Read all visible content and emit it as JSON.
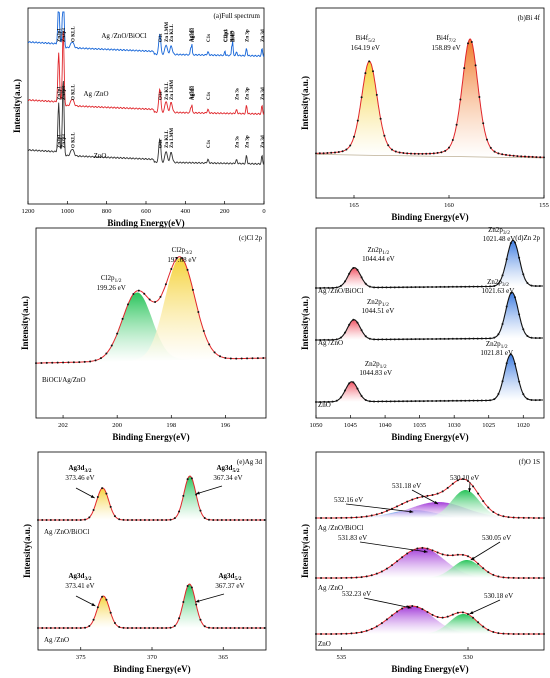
{
  "colors": {
    "blue": "#1565d8",
    "red": "#e0262b",
    "gray": "#333333",
    "yellow": "#f5d23a",
    "orange": "#f07a2a",
    "green": "#28c45a",
    "pink": "#f05060",
    "sky": "#3a7ae0",
    "purple": "#a23ad8"
  },
  "chart_data": [
    {
      "type": "line",
      "panel": "a",
      "title": "(a)Full spectrum",
      "xlabel": "Binding Energy(eV)",
      "ylabel": "Intensity(a.u.)",
      "xlim": [
        1200,
        0
      ],
      "xticks": [
        "1200",
        "1000",
        "800",
        "600",
        "400",
        "200",
        "0"
      ],
      "series": [
        {
          "name": "Ag /ZnO/BiOCl",
          "color": "blue"
        },
        {
          "name": "Ag /ZnO",
          "color": "red"
        },
        {
          "name": "ZnO",
          "color": "gray"
        }
      ],
      "annotations": [
        {
          "text": "Zn2p1",
          "x": 1044,
          "row": 0
        },
        {
          "text": "Zn2p3",
          "x": 1021,
          "row": 0
        },
        {
          "text": "O KLL",
          "x": 975,
          "row": 0
        },
        {
          "text": "O1s",
          "x": 530,
          "row": 0
        },
        {
          "text": "Zn LMM",
          "x": 498,
          "row": 0
        },
        {
          "text": "Zn KLL",
          "x": 472,
          "row": 0
        },
        {
          "text": "Ag3d3",
          "x": 373,
          "row": 0
        },
        {
          "text": "Ag3d5",
          "x": 367,
          "row": 0
        },
        {
          "text": "C1s",
          "x": 285,
          "row": 0
        },
        {
          "text": "Cl2p1",
          "x": 199,
          "row": 0
        },
        {
          "text": "Cl2p3",
          "x": 197,
          "row": 0
        },
        {
          "text": "Bi4f5",
          "x": 164,
          "row": 0
        },
        {
          "text": "Bi4f7",
          "x": 159,
          "row": 0
        },
        {
          "text": "Zn 3d",
          "x": 10,
          "row": 0
        },
        {
          "text": "Zn 3p",
          "x": 89,
          "row": 0
        },
        {
          "text": "Zn2p1",
          "x": 1044,
          "row": 1
        },
        {
          "text": "Zn2p3",
          "x": 1021,
          "row": 1
        },
        {
          "text": "O KLL",
          "x": 975,
          "row": 1
        },
        {
          "text": "O1s",
          "x": 530,
          "row": 1
        },
        {
          "text": "Zn KLL",
          "x": 498,
          "row": 1
        },
        {
          "text": "Zn LMM",
          "x": 472,
          "row": 1
        },
        {
          "text": "Ag3d3",
          "x": 373,
          "row": 1
        },
        {
          "text": "Ag3d5",
          "x": 367,
          "row": 1
        },
        {
          "text": "C1s",
          "x": 285,
          "row": 1
        },
        {
          "text": "Zn 3s",
          "x": 140,
          "row": 1
        },
        {
          "text": "Zn 3d",
          "x": 10,
          "row": 1
        },
        {
          "text": "Zn 3p",
          "x": 89,
          "row": 1
        },
        {
          "text": "Zn2p1",
          "x": 1044,
          "row": 2
        },
        {
          "text": "Zn2p3",
          "x": 1021,
          "row": 2
        },
        {
          "text": "O KLL",
          "x": 975,
          "row": 2
        },
        {
          "text": "O1s",
          "x": 530,
          "row": 2
        },
        {
          "text": "Zn KLL",
          "x": 498,
          "row": 2
        },
        {
          "text": "Zn LMM",
          "x": 472,
          "row": 2
        },
        {
          "text": "C1s",
          "x": 285,
          "row": 2
        },
        {
          "text": "Zn 3s",
          "x": 140,
          "row": 2
        },
        {
          "text": "Zn 3d",
          "x": 10,
          "row": 2
        },
        {
          "text": "Zn 3p",
          "x": 89,
          "row": 2
        }
      ]
    },
    {
      "type": "line",
      "panel": "b",
      "title": "(b)Bi 4f",
      "xlabel": "Binding Energy(eV)",
      "ylabel": "Intensity(a.u.)",
      "xlim": [
        167,
        155
      ],
      "xticks": [
        "165",
        "160",
        "155"
      ],
      "peaks": [
        {
          "label": "Bi4f5/2",
          "value": "164.19 eV",
          "x": 164.19,
          "height": 0.78,
          "color": "yellow"
        },
        {
          "label": "Bi4f7/2",
          "value": "158.89 eV",
          "x": 158.89,
          "height": 0.98,
          "color": "orange"
        }
      ]
    },
    {
      "type": "line",
      "panel": "c",
      "title": "(c)Cl 2p",
      "xlabel": "Binding Energy(eV)",
      "ylabel": "Intensity(a.u.)",
      "xlim": [
        203,
        194.5
      ],
      "xticks": [
        "202",
        "200",
        "198",
        "196"
      ],
      "sample": "BiOCl/Ag/ZnO",
      "peaks": [
        {
          "label": "Cl2p1/2",
          "value": "199.26 eV",
          "x": 199.26,
          "height": 0.57,
          "color": "green"
        },
        {
          "label": "Cl2p3/2",
          "value": "197.68 eV",
          "x": 197.68,
          "height": 0.85,
          "color": "yellow"
        }
      ]
    },
    {
      "type": "line",
      "panel": "d",
      "title": "(d)Zn 2p",
      "xlabel": "Binding Energy(eV)",
      "ylabel": "Intensity(a.u.)",
      "xlim": [
        1050,
        1017
      ],
      "xticks": [
        "1050",
        "1045",
        "1040",
        "1035",
        "1030",
        "1025",
        "1020"
      ],
      "series": [
        {
          "name": "Ag /ZnO/BiOCl",
          "peaks": [
            {
              "label": "Zn2p1/2",
              "value": "1044.44 eV",
              "x": 1044.44
            },
            {
              "label": "Zn2p3/2",
              "value": "1021.48 eV",
              "x": 1021.48
            }
          ]
        },
        {
          "name": "Ag /ZnO",
          "peaks": [
            {
              "label": "Zn2p1/2",
              "value": "1044.51 eV",
              "x": 1044.51
            },
            {
              "label": "Zn2p3/2",
              "value": "1021.63 eV",
              "x": 1021.63
            }
          ]
        },
        {
          "name": "ZnO",
          "peaks": [
            {
              "label": "Zn2p1/2",
              "value": "1044.83 eV",
              "x": 1044.83
            },
            {
              "label": "Zn2p1/2",
              "value": "1021.81 eV",
              "x": 1021.81
            }
          ]
        }
      ]
    },
    {
      "type": "line",
      "panel": "e",
      "title": "(e)Ag 3d",
      "xlabel": "Binding Energy(eV)",
      "ylabel": "Intensity(a.u.)",
      "xlim": [
        378,
        362
      ],
      "xticks": [
        "375",
        "370",
        "365"
      ],
      "series": [
        {
          "name": "Ag /ZnO/BiOCl",
          "peaks": [
            {
              "label": "Ag3d3/2",
              "value": "373.46 eV",
              "x": 373.46
            },
            {
              "label": "Ag3d5/2",
              "value": "367.34 eV",
              "x": 367.34
            }
          ]
        },
        {
          "name": "Ag /ZnO",
          "peaks": [
            {
              "label": "Ag3d3/2",
              "value": "373.41 eV",
              "x": 373.41
            },
            {
              "label": "Ag3d5/2",
              "value": "367.37 eV",
              "x": 367.37
            }
          ]
        }
      ]
    },
    {
      "type": "line",
      "panel": "f",
      "title": "(f)O 1S",
      "xlabel": "Binding Energy(eV)",
      "ylabel": "Intensity(a.u.)",
      "xlim": [
        536,
        527
      ],
      "xticks": [
        "535",
        "530"
      ],
      "series": [
        {
          "name": "Ag /ZnO/BiOCl",
          "peaks": [
            {
              "value": "532.16 eV",
              "x": 532.16,
              "color": "sky"
            },
            {
              "value": "531.18 eV",
              "x": 531.18,
              "color": "purple"
            },
            {
              "value": "530.10 eV",
              "x": 530.1,
              "color": "green"
            }
          ]
        },
        {
          "name": "Ag /ZnO",
          "peaks": [
            {
              "value": "531.83 eV",
              "x": 531.83,
              "color": "purple"
            },
            {
              "value": "530.05 eV",
              "x": 530.05,
              "color": "green"
            }
          ]
        },
        {
          "name": "ZnO",
          "peaks": [
            {
              "value": "532.23 eV",
              "x": 532.23,
              "color": "purple"
            },
            {
              "value": "530.18 eV",
              "x": 530.18,
              "color": "green"
            }
          ]
        }
      ]
    }
  ]
}
